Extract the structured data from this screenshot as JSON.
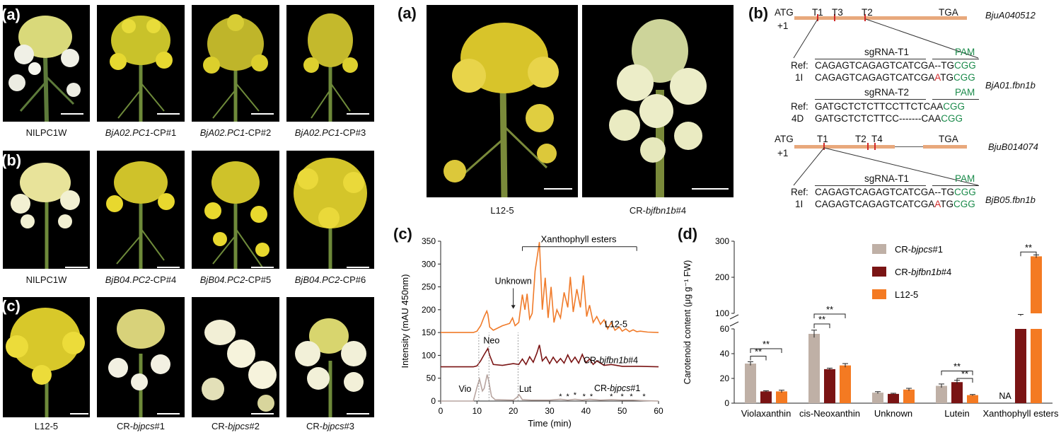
{
  "left_figure": {
    "panel_a": {
      "label": "(a)",
      "captions": [
        {
          "pre": "NILPC1W",
          "ital": "",
          "post": ""
        },
        {
          "pre": "",
          "ital": "BjA02.PC1",
          "post": "-CP#1"
        },
        {
          "pre": "",
          "ital": "BjA02.PC1",
          "post": "-CP#2"
        },
        {
          "pre": "",
          "ital": "BjA02.PC1",
          "post": "-CP#3"
        }
      ]
    },
    "panel_b": {
      "label": "(b)",
      "captions": [
        {
          "pre": "NILPC1W",
          "ital": "",
          "post": ""
        },
        {
          "pre": "",
          "ital": "BjB04.PC2",
          "post": "-CP#4"
        },
        {
          "pre": "",
          "ital": "BjB04.PC2",
          "post": "-CP#5"
        },
        {
          "pre": "",
          "ital": "BjB04.PC2",
          "post": "-CP#6"
        }
      ]
    },
    "panel_c": {
      "label": "(c)",
      "captions": [
        {
          "pre": "L12-5",
          "ital": "",
          "post": ""
        },
        {
          "pre": "CR-",
          "ital": "bjpcs",
          "post": "#1"
        },
        {
          "pre": "CR-",
          "ital": "bjpcs",
          "post": "#2"
        },
        {
          "pre": "CR-",
          "ital": "bjpcs",
          "post": "#3"
        }
      ]
    }
  },
  "right_figure": {
    "panel_a": {
      "label": "(a)",
      "captions": [
        {
          "pre": "L12-5",
          "ital": "",
          "post": ""
        },
        {
          "pre": "CR-",
          "ital": "bjfbn1b",
          "post": "#4"
        }
      ]
    },
    "panel_b": {
      "label": "(b)",
      "gene1": {
        "atg": "ATG",
        "plus1": "+1",
        "tga": "TGA",
        "targets": [
          "T1",
          "T3",
          "T2"
        ],
        "name": "BjuA040512"
      },
      "gene2": {
        "atg": "ATG",
        "plus1": "+1",
        "tga": "TGA",
        "targets": [
          "T1",
          "T2",
          "T4"
        ],
        "name": "BjuB014074"
      },
      "block1": {
        "sgrna": "sgRNA-T1",
        "pam": "PAM",
        "ref_label": "Ref:",
        "ref_seq": "CAGAGTCAGAGTCATCGA--TG",
        "ref_pam": "CGG",
        "mut_label": "1I",
        "mut_seq_a": "CAGAGTCAGAGTCATCGA",
        "mut_ins": "A",
        "mut_seq_b": "TG",
        "mut_pam": "CGG",
        "allele": "BjA01.fbn1b"
      },
      "block2": {
        "sgrna": "sgRNA-T2",
        "pam": "PAM",
        "ref_label": "Ref:",
        "ref_seq": "GATGCTCTCTTCCTTCTCAA",
        "ref_pam": "CGG",
        "mut_label": "4D",
        "mut_seq": "GATGCTCTCTTCC-------CAA",
        "mut_pam": "CGG"
      },
      "block3": {
        "sgrna": "sgRNA-T1",
        "pam": "PAM",
        "ref_label": "Ref:",
        "ref_seq": "CAGAGTCAGAGTCATCGA--TG",
        "ref_pam": "CGG",
        "mut_label": "1I",
        "mut_seq_a": "CAGAGTCAGAGTCATCGA",
        "mut_ins": "A",
        "mut_seq_b": "TG",
        "mut_pam": "CGG",
        "allele": "BjB05.fbn1b"
      }
    },
    "panel_c": {
      "label": "(c)",
      "bracket_label": "Xanthophyll esters",
      "unknown_label": "Unknown",
      "peak_labels": {
        "neo": "Neo",
        "vio": "Vio",
        "lut": "Lut"
      },
      "trace_labels": [
        {
          "pre": "L12-5",
          "ital": "",
          "post": ""
        },
        {
          "pre": "CR-",
          "ital": "bjfbn1b",
          "post": "#4"
        },
        {
          "pre": "CR-",
          "ital": "bjpcs",
          "post": "#1"
        }
      ]
    },
    "panel_d": {
      "label": "(d)",
      "na_label": "NA",
      "sig": "**"
    }
  },
  "chart_data": [
    {
      "type": "line",
      "title": "",
      "xlabel": "Time (min)",
      "ylabel": "Intensity (mAU 450nm)",
      "xlim": [
        0,
        60
      ],
      "ylim": [
        0,
        350
      ],
      "xticks": [
        "0",
        "10",
        "20",
        "30",
        "40",
        "50",
        "60"
      ],
      "yticks": [
        "0",
        "50",
        "100",
        "150",
        "200",
        "250",
        "300",
        "350"
      ],
      "series": [
        {
          "name": "L12-5",
          "color": "#f07b2a",
          "x": [
            0,
            9,
            10,
            11,
            12,
            12.7,
            13,
            13.5,
            14.5,
            17,
            19,
            19.8,
            20.5,
            21.5,
            22.5,
            23.2,
            23.8,
            24.5,
            25.2,
            26,
            27.2,
            28,
            28.8,
            29.6,
            30.4,
            31.2,
            32,
            33,
            34,
            35,
            35.7,
            36.5,
            37.5,
            38.5,
            39.3,
            40.2,
            41,
            42,
            43,
            44,
            45,
            46,
            47,
            48,
            49.2,
            50,
            51,
            52,
            53,
            54,
            55,
            57,
            60
          ],
          "y": [
            150,
            150,
            153,
            165,
            185,
            197,
            190,
            162,
            155,
            165,
            170,
            182,
            165,
            172,
            233,
            200,
            235,
            180,
            192,
            285,
            348,
            200,
            270,
            182,
            250,
            172,
            200,
            182,
            238,
            205,
            272,
            195,
            245,
            205,
            275,
            185,
            210,
            172,
            185,
            168,
            178,
            158,
            172,
            155,
            162,
            153,
            158,
            152,
            156,
            152,
            153,
            151,
            150
          ]
        },
        {
          "name": "CR-bjfbn1b#4",
          "color": "#7a1414",
          "x": [
            0,
            9,
            10,
            11,
            12,
            13,
            13.5,
            14.5,
            17,
            20,
            21.5,
            22.5,
            23.5,
            24.5,
            25.5,
            26.5,
            27.2,
            28,
            29,
            30,
            31,
            32,
            33,
            34,
            35,
            36,
            37,
            38,
            39,
            40,
            41,
            42,
            43,
            45,
            47,
            50,
            55,
            60
          ],
          "y": [
            75,
            75,
            77,
            88,
            102,
            115,
            100,
            80,
            78,
            82,
            80,
            92,
            80,
            97,
            85,
            105,
            123,
            88,
            97,
            82,
            96,
            84,
            93,
            83,
            101,
            85,
            96,
            83,
            102,
            84,
            92,
            80,
            88,
            78,
            80,
            76,
            76,
            75
          ]
        },
        {
          "name": "CR-bjpcs#1",
          "color": "#b8a5a0",
          "x": [
            0,
            9,
            10,
            10.7,
            11.5,
            12,
            12.8,
            13.2,
            14,
            15,
            20,
            21,
            21.6,
            22.5,
            25,
            30,
            33,
            35,
            37,
            39,
            41,
            44,
            47,
            50,
            53,
            56,
            60
          ],
          "y": [
            0,
            0,
            30,
            48,
            22,
            28,
            58,
            45,
            10,
            3,
            2,
            8,
            14,
            3,
            2,
            2,
            4,
            2,
            4,
            2,
            4,
            2,
            3,
            2,
            2,
            1,
            0
          ]
        }
      ],
      "annotations": [
        "Xanthophyll esters",
        "Unknown",
        "Neo",
        "Vio",
        "Lut",
        "*"
      ]
    },
    {
      "type": "bar",
      "title": "",
      "xlabel": "",
      "ylabel": "Carotenoid content (μg g⁻¹ FW)",
      "y_axis": "broken: lower 0–60, upper 100–300",
      "yticks": [
        "0",
        "20",
        "40",
        "60",
        "100",
        "200",
        "300"
      ],
      "categories": [
        "Violaxanthin",
        "cis-Neoxanthin",
        "Unknown",
        "Lutein",
        "Xanthophyll esters"
      ],
      "legend_position": "top-center",
      "series": [
        {
          "name": "CR-bjpcs#1",
          "color": "#bfb0a6",
          "values": [
            32,
            56,
            8.5,
            14,
            null
          ],
          "errors": [
            1.5,
            3,
            0.8,
            1.5,
            null
          ]
        },
        {
          "name": "CR-bjfbn1b#4",
          "color": "#7a1414",
          "values": [
            9.5,
            27.5,
            7.5,
            17,
            95
          ],
          "errors": [
            0.5,
            0.8,
            0.5,
            1.5,
            2
          ]
        },
        {
          "name": "L12-5",
          "color": "#f47a22",
          "values": [
            9.5,
            30.5,
            11,
            6.5,
            258
          ],
          "errors": [
            1,
            1.5,
            1,
            0.5,
            4
          ]
        }
      ]
    }
  ]
}
